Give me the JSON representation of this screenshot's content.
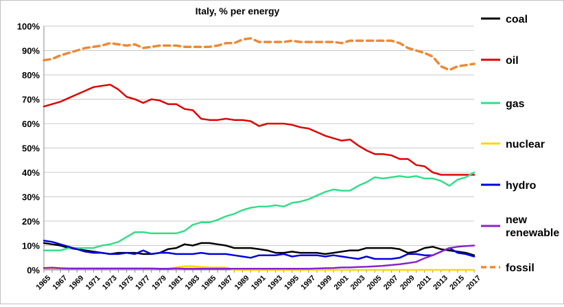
{
  "chart_data": {
    "type": "line",
    "title": "Italy, % per energy",
    "xlabel": "",
    "ylabel": "",
    "ylim": [
      0,
      100
    ],
    "y_tick_labels": [
      "0%",
      "10%",
      "20%",
      "30%",
      "40%",
      "50%",
      "60%",
      "70%",
      "80%",
      "90%",
      "100%"
    ],
    "x": [
      1965,
      1966,
      1967,
      1968,
      1969,
      1970,
      1971,
      1972,
      1973,
      1974,
      1975,
      1976,
      1977,
      1978,
      1979,
      1980,
      1981,
      1982,
      1983,
      1984,
      1985,
      1986,
      1987,
      1988,
      1989,
      1990,
      1991,
      1992,
      1993,
      1994,
      1995,
      1996,
      1997,
      1998,
      1999,
      2000,
      2001,
      2002,
      2003,
      2004,
      2005,
      2006,
      2007,
      2008,
      2009,
      2010,
      2011,
      2012,
      2013,
      2014,
      2015,
      2016,
      2017
    ],
    "x_tick_labels": [
      "1965",
      "1967",
      "1969",
      "1971",
      "1973",
      "1975",
      "1977",
      "1979",
      "1981",
      "1983",
      "1985",
      "1987",
      "1989",
      "1991",
      "1993",
      "1995",
      "1997",
      "1999",
      "2001",
      "2003",
      "2005",
      "2007",
      "2009",
      "2011",
      "2013",
      "2015",
      "2017"
    ],
    "grid": true,
    "legend_position": "right",
    "series": [
      {
        "name": "coal",
        "color": "#000000",
        "dashed": false,
        "values": [
          11,
          10.5,
          10,
          9,
          8.5,
          8,
          7.5,
          7,
          6.5,
          7,
          7,
          7,
          6.5,
          6.5,
          7,
          8.5,
          9,
          10.5,
          10,
          11,
          11,
          10.5,
          10,
          9,
          9,
          9,
          8.5,
          8,
          7,
          7,
          7.5,
          7,
          7,
          7,
          6.5,
          7,
          7.5,
          8,
          8,
          9,
          9,
          9,
          9,
          8.5,
          7,
          7.5,
          9,
          9.5,
          8.5,
          8,
          7.5,
          7,
          6
        ]
      },
      {
        "name": "oil",
        "color": "#e00000",
        "dashed": false,
        "values": [
          67,
          68,
          69,
          70.5,
          72,
          73.5,
          75,
          75.5,
          76,
          74,
          71,
          70,
          68.5,
          70,
          69.5,
          68,
          68,
          66,
          65.5,
          62,
          61.5,
          61.5,
          62,
          61.5,
          61.5,
          61,
          59,
          60,
          60,
          60,
          59.5,
          58.5,
          58,
          56.5,
          55,
          54,
          53,
          53.5,
          51,
          49,
          47.5,
          47.5,
          47,
          45.5,
          45.5,
          43,
          42.5,
          40,
          39,
          39,
          39,
          39,
          39
        ]
      },
      {
        "name": "gas",
        "color": "#33dd88",
        "dashed": false,
        "values": [
          8,
          8,
          8,
          9,
          9,
          9,
          9,
          10,
          10.5,
          11.5,
          13.5,
          15.5,
          15.5,
          15,
          15,
          15,
          15,
          16,
          18.5,
          19.5,
          19.5,
          20.5,
          22,
          23,
          24.5,
          25.5,
          26,
          26,
          26.5,
          26,
          27.5,
          28,
          29,
          30.5,
          32,
          33,
          32.5,
          32.5,
          34.5,
          36,
          38,
          37.5,
          38,
          38.5,
          38,
          38.5,
          37.5,
          37.5,
          36.5,
          34.5,
          37,
          38,
          40
        ]
      },
      {
        "name": "nuclear",
        "color": "#ffd700",
        "dashed": false,
        "values": [
          0.5,
          0.5,
          0.5,
          0.5,
          0.5,
          0.5,
          0.5,
          0.5,
          0.5,
          0.5,
          0.5,
          0.5,
          0.5,
          0.5,
          0.5,
          0.5,
          1,
          1.5,
          1.5,
          1.2,
          1,
          1,
          1,
          0,
          0,
          0,
          0,
          0,
          0,
          0,
          0,
          0,
          0,
          0,
          0,
          0,
          0,
          0,
          0,
          0,
          0,
          0,
          0,
          0,
          0,
          0,
          0,
          0,
          0,
          0,
          0,
          0,
          0
        ]
      },
      {
        "name": "hydro",
        "color": "#0000dd",
        "dashed": false,
        "values": [
          12,
          11.5,
          10.5,
          9.5,
          8.5,
          7.5,
          7,
          7,
          6.5,
          6.5,
          7,
          6.5,
          8,
          6.5,
          7,
          7,
          6.5,
          6.5,
          6.5,
          7,
          6.5,
          6.5,
          6.5,
          6,
          5.5,
          5,
          6,
          6,
          6,
          6.5,
          5.5,
          6,
          6,
          6,
          5.5,
          6,
          5.5,
          5,
          4.5,
          5.5,
          4.5,
          4.5,
          4.5,
          5,
          6.5,
          6.5,
          6,
          6,
          7.5,
          9,
          7,
          6.5,
          5.5
        ]
      },
      {
        "name": "new renewable",
        "color": "#8822cc",
        "dashed": false,
        "values": [
          0.8,
          0.9,
          0.7,
          0.6,
          0.6,
          0.6,
          0.6,
          0.6,
          0.6,
          0.6,
          0.6,
          0.6,
          0.6,
          0.6,
          0.5,
          0.5,
          0.6,
          0.5,
          0.5,
          0.5,
          0.5,
          0.5,
          0.5,
          0.5,
          0.5,
          0.5,
          0.5,
          0.5,
          0.5,
          0.5,
          0.5,
          0.5,
          0.5,
          0.6,
          0.7,
          0.8,
          1,
          1,
          1.2,
          1.3,
          1.5,
          1.7,
          2,
          2.3,
          2.8,
          3.3,
          4.8,
          6,
          7.5,
          9,
          9.5,
          9.8,
          10
        ]
      },
      {
        "name": "fossil",
        "color": "#ee8833",
        "dashed": true,
        "values": [
          86,
          86.5,
          88,
          89,
          90,
          91,
          91.5,
          92,
          93,
          92.5,
          92,
          92.5,
          91,
          91.5,
          92,
          92,
          92,
          91.5,
          91.5,
          91.5,
          91.5,
          92,
          93,
          93,
          94.5,
          95,
          93.5,
          93.5,
          93.5,
          93.5,
          94,
          93.5,
          93.5,
          93.5,
          93.5,
          93.5,
          93,
          94,
          94,
          94,
          94,
          94,
          94,
          93,
          91,
          90,
          89,
          87.5,
          83.5,
          82,
          83.5,
          84,
          84.5
        ]
      }
    ]
  }
}
